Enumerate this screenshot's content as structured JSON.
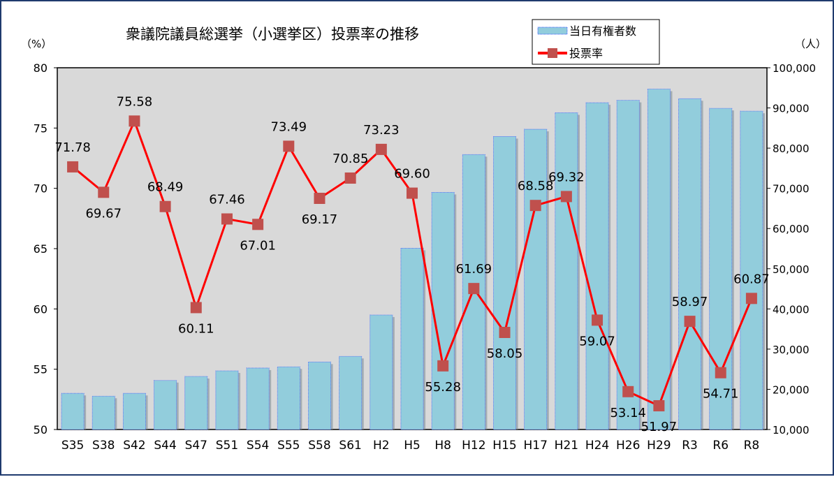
{
  "chart_data": {
    "type": "bar+line",
    "title": "衆議院議員総選挙（小選挙区）投票率の推移",
    "y_left_unit": "（%）",
    "y_right_unit": "（人）",
    "y_left_lim": [
      50,
      80
    ],
    "y_left_ticks": [
      "50",
      "55",
      "60",
      "65",
      "70",
      "75",
      "80"
    ],
    "y_right_lim": [
      10000,
      100000
    ],
    "y_right_ticks": [
      "10,000",
      "20,000",
      "30,000",
      "40,000",
      "50,000",
      "60,000",
      "70,000",
      "80,000",
      "90,000",
      "100,000"
    ],
    "categories": [
      "S35",
      "S38",
      "S42",
      "S44",
      "S47",
      "S51",
      "S54",
      "S55",
      "S58",
      "S61",
      "H2",
      "H5",
      "H8",
      "H12",
      "H15",
      "H17",
      "H21",
      "H24",
      "H26",
      "H29",
      "R3",
      "R6",
      "R8"
    ],
    "series": [
      {
        "name": "当日有権者数",
        "kind": "bar",
        "axis": "right",
        "color": "#92cddc",
        "values": [
          19000,
          18300,
          19000,
          22200,
          23200,
          24600,
          25300,
          25600,
          26800,
          28200,
          38500,
          55100,
          69000,
          78400,
          82900,
          84700,
          88800,
          91300,
          91900,
          94700,
          92300,
          89900,
          89200
        ]
      },
      {
        "name": "投票率",
        "kind": "line",
        "axis": "left",
        "color": "#ff0000",
        "marker_color": "#c0504d",
        "values": [
          71.78,
          69.67,
          75.58,
          68.49,
          60.11,
          67.46,
          67.01,
          73.49,
          69.17,
          70.85,
          73.23,
          69.6,
          55.28,
          61.69,
          58.05,
          68.58,
          69.32,
          59.07,
          53.14,
          51.97,
          58.97,
          54.71,
          60.87
        ],
        "labels": [
          "71.78",
          "69.67",
          "75.58",
          "68.49",
          "60.11",
          "67.46",
          "67.01",
          "73.49",
          "69.17",
          "70.85",
          "73.23",
          "69.60",
          "55.28",
          "61.69",
          "58.05",
          "68.58",
          "69.32",
          "59.07",
          "53.14",
          "51.97",
          "58.97",
          "54.71",
          "60.87"
        ]
      }
    ],
    "plot_background": "#d9d9d9",
    "grid": false,
    "legend_placement": "top-right"
  }
}
